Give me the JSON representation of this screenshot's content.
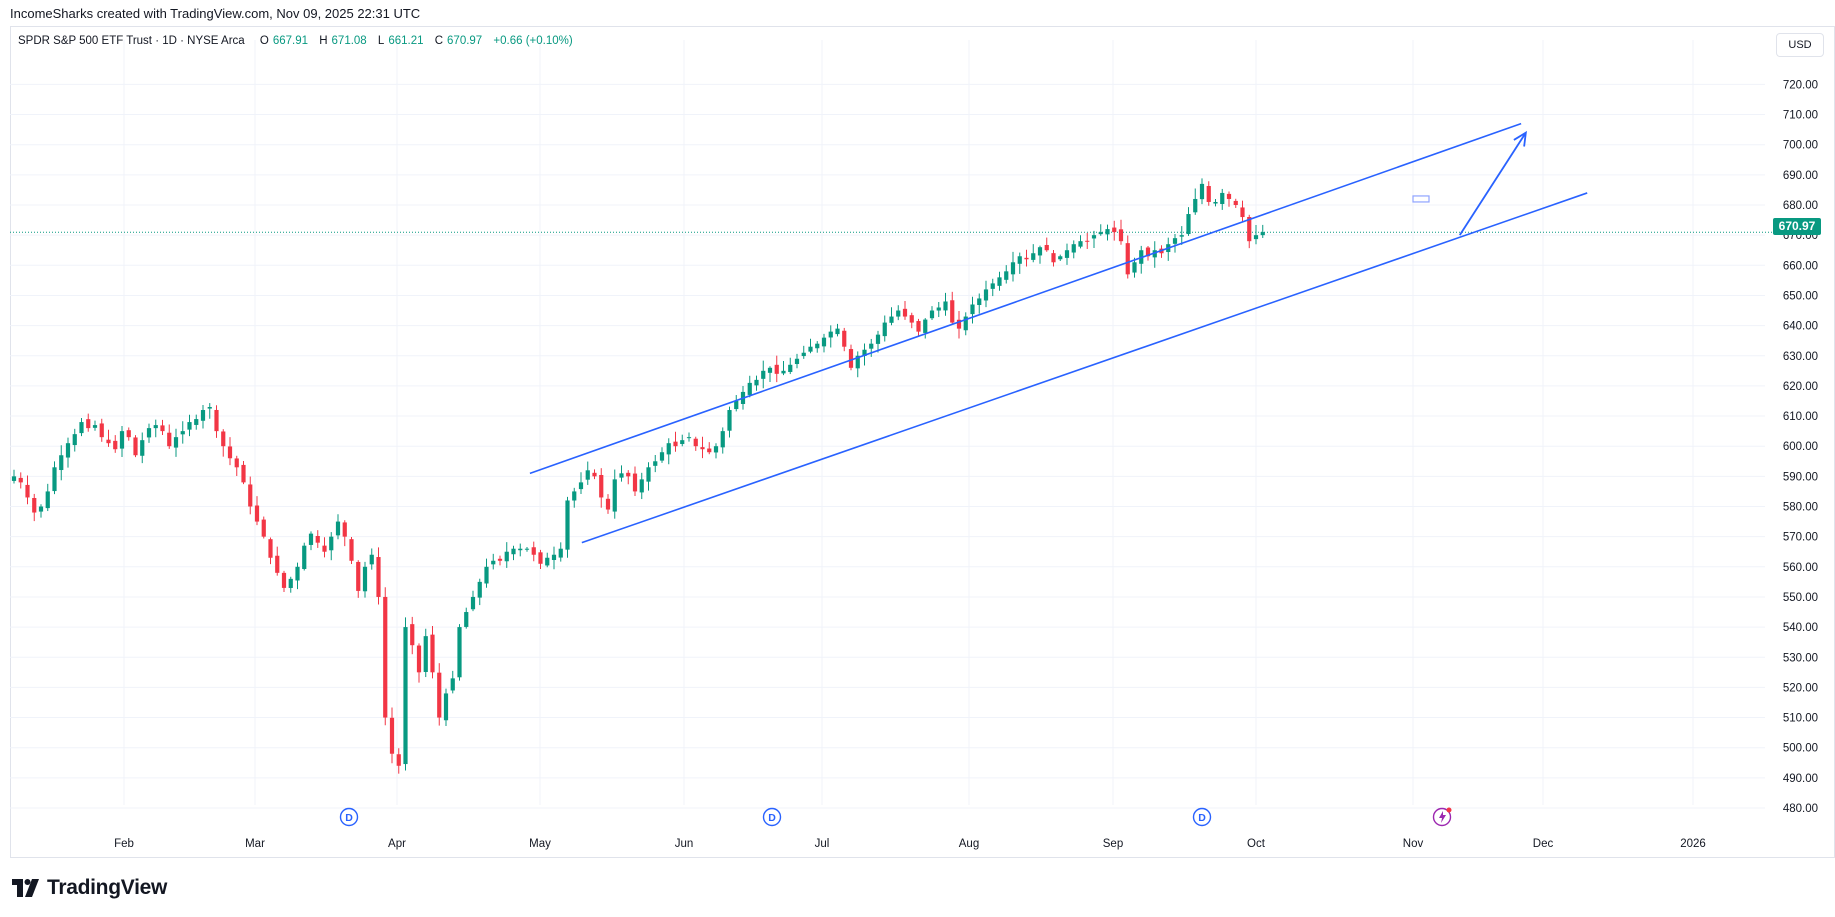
{
  "header": {
    "credit": "IncomeSharks created with TradingView.com, Nov 09, 2025 22:31 UTC"
  },
  "legend": {
    "symbol": "SPDR S&P 500 ETF Trust · 1D · NYSE Arca",
    "open_label": "O",
    "open": "667.91",
    "high_label": "H",
    "high": "671.08",
    "low_label": "L",
    "low": "661.21",
    "close_label": "C",
    "close": "670.97",
    "change": "+0.66 (+0.10%)"
  },
  "currency_button": "USD",
  "last_price_tag": "670.97",
  "footer": {
    "brand": "TradingView"
  },
  "colors": {
    "up": "#089981",
    "down": "#f23645",
    "drawing": "#2962ff",
    "grid": "#f0f3fa",
    "axis_text": "#131722"
  },
  "chart_data": {
    "type": "candlestick",
    "ylim": [
      475,
      728
    ],
    "y_ticks": [
      "720.00",
      "710.00",
      "700.00",
      "690.00",
      "680.00",
      "670.00",
      "660.00",
      "650.00",
      "640.00",
      "630.00",
      "620.00",
      "610.00",
      "600.00",
      "590.00",
      "580.00",
      "570.00",
      "560.00",
      "550.00",
      "540.00",
      "530.00",
      "520.00",
      "510.00",
      "500.00",
      "490.00",
      "480.00"
    ],
    "x_labels": [
      "Feb",
      "Mar",
      "Apr",
      "May",
      "Jun",
      "Jul",
      "Aug",
      "Sep",
      "Oct",
      "Nov",
      "Dec",
      "2026"
    ],
    "last_price": 670.97,
    "dividend_markers": [
      "D",
      "D",
      "D"
    ],
    "close_series_approx": [
      590,
      588,
      583,
      578,
      580,
      585,
      593,
      597,
      601,
      604,
      608,
      606,
      607,
      603,
      601,
      599,
      605,
      603,
      597,
      602,
      606,
      607,
      605,
      600,
      603,
      605,
      608,
      609,
      612,
      613,
      605,
      600,
      596,
      593,
      588,
      580,
      575,
      570,
      563,
      558,
      553,
      556,
      560,
      567,
      571,
      568,
      565,
      570,
      575,
      570,
      562,
      552,
      560,
      564,
      550,
      510,
      498,
      494,
      540,
      534,
      525,
      537,
      525,
      510,
      518,
      523,
      540,
      545,
      550,
      555,
      560,
      562,
      562,
      565,
      566,
      566,
      566,
      564,
      561,
      563,
      564,
      566,
      582,
      585,
      588,
      592,
      590,
      583,
      579,
      589,
      591,
      590,
      585,
      589,
      593,
      595,
      598,
      601,
      600,
      602,
      603,
      600,
      599,
      598,
      600,
      605,
      612,
      615,
      618,
      621,
      622,
      625,
      626,
      624,
      625,
      627,
      629,
      631,
      633,
      634,
      636,
      638,
      639,
      633,
      626,
      630,
      632,
      634,
      637,
      641,
      643,
      645,
      643,
      641,
      638,
      642,
      645,
      646,
      648,
      641,
      639,
      643,
      647,
      649,
      652,
      654,
      656,
      658,
      661,
      663,
      662,
      664,
      666,
      665,
      661,
      663,
      665,
      667,
      668,
      668,
      670,
      671,
      672,
      671,
      668,
      657,
      661,
      665,
      663,
      665,
      664,
      667,
      669,
      670,
      677,
      682,
      687,
      681,
      681,
      684,
      682,
      680,
      676,
      668,
      670,
      671
    ],
    "trend_channel": {
      "upper_line": [
        [
          "Apr 28",
          591
        ],
        [
          "Nov 24",
          707
        ]
      ],
      "lower_line": [
        [
          "May 9",
          568
        ],
        [
          "Dec 8",
          684
        ]
      ]
    },
    "projection_arrow": [
      [
        "Nov 11",
        670
      ],
      [
        "Nov 25",
        704
      ]
    ]
  }
}
